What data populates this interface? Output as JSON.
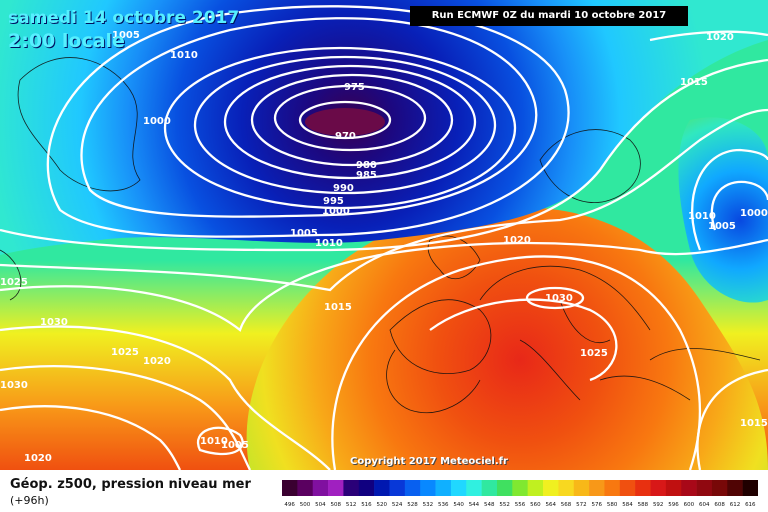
{
  "header": {
    "date": "samedi 14 octobre 2017",
    "local_time": "2:00 locale",
    "run": "Run ECMWF 0Z du mardi 10 octobre 2017"
  },
  "copyright": "Copyright 2017 Meteociel.fr",
  "footer": {
    "title": "Géop. z500, pression niveau mer",
    "subtitle": "(+96h)"
  },
  "isobar_labels": [
    {
      "text": "1005"
    },
    {
      "text": "1010"
    },
    {
      "text": "1000"
    },
    {
      "text": "975"
    },
    {
      "text": "970"
    },
    {
      "text": "980"
    },
    {
      "text": "985"
    },
    {
      "text": "990"
    },
    {
      "text": "995"
    },
    {
      "text": "1000"
    },
    {
      "text": "1005"
    },
    {
      "text": "1010"
    },
    {
      "text": "1015"
    },
    {
      "text": "1020"
    },
    {
      "text": "1020"
    },
    {
      "text": "1015"
    },
    {
      "text": "1010"
    },
    {
      "text": "1005"
    },
    {
      "text": "1000"
    },
    {
      "text": "1030"
    },
    {
      "text": "1025"
    },
    {
      "text": "1025"
    },
    {
      "text": "1030"
    },
    {
      "text": "1025"
    },
    {
      "text": "1020"
    },
    {
      "text": "1030"
    },
    {
      "text": "1010"
    },
    {
      "text": "1005"
    },
    {
      "text": "1020"
    },
    {
      "text": "1015"
    }
  ],
  "color_scale": {
    "labels": [
      "496",
      "500",
      "504",
      "508",
      "512",
      "516",
      "520",
      "524",
      "528",
      "532",
      "536",
      "540",
      "544",
      "548",
      "552",
      "556",
      "560",
      "564",
      "568",
      "572",
      "576",
      "580",
      "584",
      "588",
      "592",
      "596",
      "600",
      "604",
      "608",
      "612",
      "616"
    ],
    "colors": [
      "#3a0030",
      "#5a0060",
      "#8010a0",
      "#a020c0",
      "#2a0078",
      "#100080",
      "#0018b0",
      "#0838d8",
      "#0860f0",
      "#0888ff",
      "#10b0ff",
      "#20d8ff",
      "#30f0e0",
      "#30e8a0",
      "#40e060",
      "#80e830",
      "#c0f020",
      "#f0f020",
      "#f8d820",
      "#f8b818",
      "#f89818",
      "#f87810",
      "#f05010",
      "#e83010",
      "#d81818",
      "#c01010",
      "#a80818",
      "#900810",
      "#780808",
      "#500404",
      "#200000"
    ]
  }
}
